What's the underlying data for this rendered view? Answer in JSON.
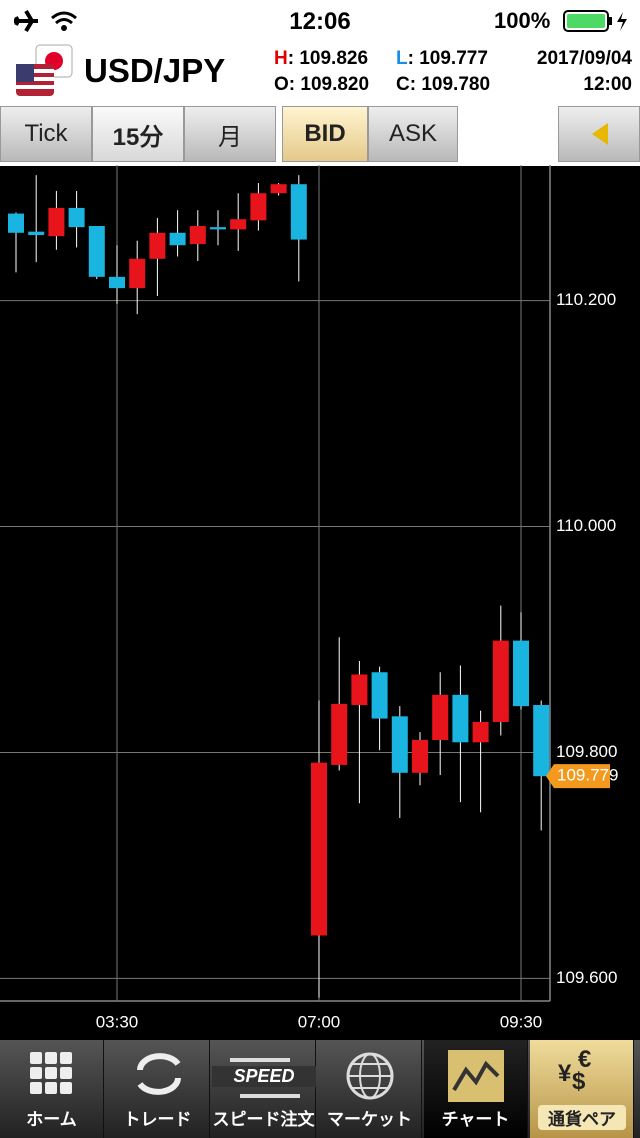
{
  "status": {
    "time": "12:06",
    "battery": "100%"
  },
  "header": {
    "pair": "USD/JPY",
    "quotes": [
      {
        "label": "H",
        "text": ": 109.826",
        "color": "#e00000"
      },
      {
        "label": "L",
        "text": ": 109.777",
        "color": "#1a8fe0"
      },
      {
        "label": "O",
        "text": ": 109.820",
        "color": "#000000"
      },
      {
        "label": "C",
        "text": ": 109.780",
        "color": "#000000"
      }
    ],
    "date": "2017/09/04",
    "time": "12:00"
  },
  "toolbar": {
    "buttons": [
      "Tick",
      "15分",
      "月",
      "BID",
      "ASK"
    ]
  },
  "chart_data": {
    "type": "candlestick",
    "categories": [
      null,
      null,
      null,
      null,
      null,
      "03:30",
      null,
      null,
      null,
      null,
      null,
      null,
      null,
      null,
      null,
      "07:00",
      null,
      null,
      null,
      null,
      null,
      null,
      null,
      null,
      null,
      "09:30",
      null
    ],
    "open": [
      110.277,
      110.261,
      110.257,
      110.282,
      110.266,
      110.221,
      110.211,
      110.237,
      110.26,
      110.25,
      110.265,
      110.263,
      110.271,
      110.295,
      110.303,
      109.638,
      109.789,
      109.842,
      109.871,
      109.832,
      109.782,
      109.811,
      109.851,
      109.809,
      109.827,
      109.899,
      109.842
    ],
    "high": [
      110.278,
      110.311,
      110.297,
      110.297,
      110.266,
      110.249,
      110.253,
      110.273,
      110.28,
      110.28,
      110.28,
      110.295,
      110.304,
      110.304,
      110.311,
      109.846,
      109.902,
      109.881,
      109.876,
      109.841,
      109.818,
      109.871,
      109.877,
      109.837,
      109.93,
      109.924,
      109.846
    ],
    "low": [
      110.225,
      110.234,
      110.245,
      110.247,
      110.219,
      110.197,
      110.188,
      110.204,
      110.239,
      110.235,
      110.249,
      110.244,
      110.262,
      110.293,
      110.217,
      109.583,
      109.784,
      109.755,
      109.802,
      109.742,
      109.771,
      109.78,
      109.756,
      109.747,
      109.815,
      109.838,
      109.731
    ],
    "close": [
      110.26,
      110.258,
      110.282,
      110.265,
      110.221,
      110.211,
      110.237,
      110.26,
      110.249,
      110.266,
      110.263,
      110.272,
      110.295,
      110.303,
      110.254,
      109.791,
      109.843,
      109.869,
      109.83,
      109.782,
      109.811,
      109.851,
      109.809,
      109.827,
      109.899,
      109.841,
      109.779
    ],
    "up_color": "#e8141c",
    "down_color": "#1ab4e0",
    "ylim": [
      109.58,
      110.32
    ],
    "yticks": [
      {
        "value": 109.6,
        "label": "109.600"
      },
      {
        "value": 109.8,
        "label": "109.800"
      },
      {
        "value": 110.0,
        "label": "110.000"
      },
      {
        "value": 110.2,
        "label": "110.200"
      }
    ],
    "grid": true,
    "last_price": 109.779
  },
  "tabs": {
    "labels": [
      "ホーム",
      "トレード",
      "スピード注文",
      "マーケット",
      "チャート",
      "通貨ペア"
    ],
    "speed_icon": "SPEED",
    "currency_icon": [
      "€",
      "$",
      "¥"
    ]
  }
}
